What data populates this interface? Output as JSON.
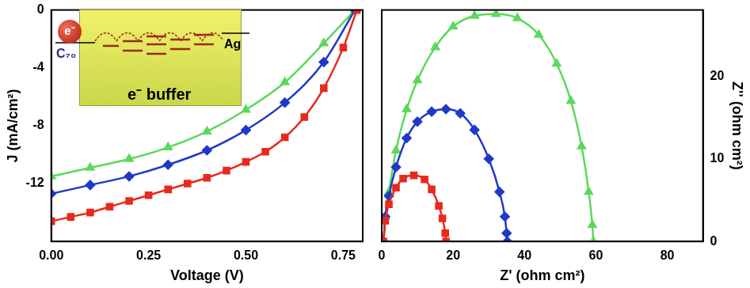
{
  "chart_data": [
    {
      "type": "line",
      "x_label": "Voltage (V)",
      "y_label": "J (mA/cm²)",
      "xlim": [
        0,
        0.8
      ],
      "xticks": [
        {
          "value": 0,
          "label": "0.00"
        },
        {
          "value": 0.25,
          "label": "0.25"
        },
        {
          "value": 0.5,
          "label": "0.50"
        },
        {
          "value": 0.75,
          "label": "0.75"
        }
      ],
      "ylim": [
        -16,
        0
      ],
      "yticks": [
        -12,
        -8,
        -4,
        0
      ],
      "grid": false,
      "annotations": [
        "e⁻",
        "C₇₀",
        "Ag",
        "e⁻ buffer"
      ],
      "series": [
        {
          "color": "#e8291c",
          "marker": "square",
          "x": [
            0,
            0.05,
            0.1,
            0.15,
            0.2,
            0.25,
            0.3,
            0.35,
            0.4,
            0.45,
            0.5,
            0.55,
            0.6,
            0.65,
            0.7,
            0.75,
            0.785
          ],
          "values": [
            -14.6,
            -14.3,
            -14.0,
            -13.6,
            -13.2,
            -12.8,
            -12.4,
            -12.0,
            -11.6,
            -11.1,
            -10.5,
            -9.8,
            -8.8,
            -7.4,
            -5.4,
            -2.6,
            0
          ]
        },
        {
          "color": "#2038c8",
          "marker": "diamond",
          "x": [
            0,
            0.1,
            0.2,
            0.3,
            0.4,
            0.5,
            0.6,
            0.7,
            0.78
          ],
          "values": [
            -12.7,
            -12.1,
            -11.5,
            -10.7,
            -9.7,
            -8.3,
            -6.4,
            -3.6,
            0
          ]
        },
        {
          "color": "#5cd85c",
          "marker": "triangle",
          "x": [
            0,
            0.1,
            0.2,
            0.3,
            0.4,
            0.5,
            0.6,
            0.7,
            0.78
          ],
          "values": [
            -11.5,
            -10.9,
            -10.3,
            -9.5,
            -8.4,
            -6.9,
            -5.0,
            -2.3,
            0
          ]
        }
      ]
    },
    {
      "type": "line",
      "x_label": "Z' (ohm cm²)",
      "y_label": "Z'' (ohm cm²)",
      "xlim": [
        0,
        90
      ],
      "xticks": [
        0,
        20,
        40,
        60,
        80
      ],
      "ylim": [
        0,
        28
      ],
      "yticks": [
        0,
        10,
        20
      ],
      "grid": false,
      "series": [
        {
          "color": "#e8291c",
          "marker": "square",
          "x": [
            0.5,
            1,
            2,
            4,
            6,
            9,
            12,
            14,
            16,
            17,
            17.8,
            18
          ],
          "values": [
            0,
            2.5,
            4.5,
            6.5,
            7.6,
            8.0,
            7.5,
            6.3,
            4.3,
            2.8,
            1,
            0
          ]
        },
        {
          "color": "#2038c8",
          "marker": "diamond",
          "x": [
            0.5,
            1,
            2,
            4,
            7,
            10,
            14,
            18,
            22,
            26,
            30,
            33,
            34.5,
            35,
            35.2
          ],
          "values": [
            0,
            3,
            5.5,
            9,
            12.5,
            14.5,
            15.7,
            16,
            15.5,
            13.5,
            10,
            6,
            3,
            1,
            0
          ]
        },
        {
          "color": "#5cd85c",
          "marker": "triangle",
          "x": [
            0.5,
            1,
            2,
            4,
            7,
            10,
            15,
            20,
            26,
            32,
            38,
            44,
            49,
            53,
            56,
            58,
            59,
            59.3
          ],
          "values": [
            0,
            3,
            6,
            11,
            16,
            19.5,
            23.5,
            26,
            27.3,
            27.5,
            27,
            25,
            21.5,
            17,
            11.5,
            6,
            2,
            0
          ]
        }
      ]
    }
  ]
}
